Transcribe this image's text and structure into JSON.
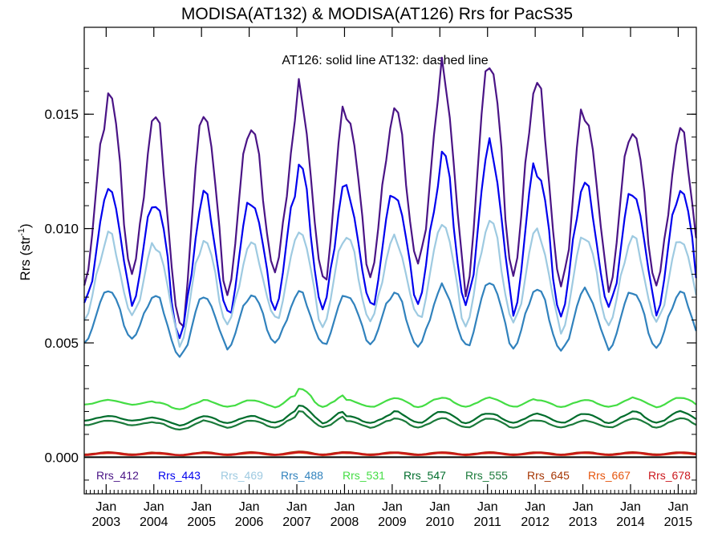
{
  "chart_data": {
    "type": "line",
    "title": "MODISA(AT132) & MODISA(AT126)  Rrs for PacS35",
    "annotation": "AT126: solid line   AT132: dashed line",
    "ylabel_main": "Rrs (str",
    "ylabel_sup": "-1",
    "ylabel_tail": ")",
    "yticks": [
      "0.000",
      "0.005",
      "0.010",
      "0.015"
    ],
    "xticks_month": "Jan",
    "xticks_years": [
      "2003",
      "2004",
      "2005",
      "2006",
      "2007",
      "2008",
      "2009",
      "2010",
      "2011",
      "2012",
      "2013",
      "2014",
      "2015"
    ],
    "ylim": [
      -0.0016,
      0.0188
    ],
    "xlim": [
      2002.54,
      2015.38
    ],
    "zero_line": true,
    "legend_position": "bottom",
    "series": [
      {
        "name": "Rrs_412",
        "color": "#4a1486",
        "baseline": 0.0078,
        "amplitude": 0.0064,
        "peaks": [
          0.0145,
          0.016,
          0.0146,
          0.0152,
          0.0143,
          0.0162,
          0.015,
          0.0152,
          0.017,
          0.0172,
          0.0162,
          0.0151,
          0.0142
        ],
        "troughs": [
          0.0078,
          0.008,
          0.0055,
          0.0073,
          0.008,
          0.0075,
          0.008,
          0.0083,
          0.0075,
          0.008,
          0.0072,
          0.0075,
          0.0075
        ]
      },
      {
        "name": "Rrs_443",
        "color": "#0000ee",
        "baseline": 0.0066,
        "amplitude": 0.0046,
        "peaks": [
          0.011,
          0.012,
          0.011,
          0.0115,
          0.0112,
          0.0128,
          0.0117,
          0.0115,
          0.0133,
          0.0136,
          0.0124,
          0.0119,
          0.0117
        ],
        "troughs": [
          0.0066,
          0.0068,
          0.0052,
          0.0062,
          0.0066,
          0.0064,
          0.0065,
          0.0068,
          0.0065,
          0.0065,
          0.0062,
          0.0064,
          0.0064
        ]
      },
      {
        "name": "Rrs_469",
        "color": "#9ecae1",
        "baseline": 0.006,
        "amplitude": 0.0036,
        "peaks": [
          0.0093,
          0.0098,
          0.0093,
          0.0095,
          0.0093,
          0.01,
          0.0096,
          0.0096,
          0.0103,
          0.0103,
          0.0098,
          0.0096,
          0.0096
        ],
        "troughs": [
          0.006,
          0.0061,
          0.005,
          0.0058,
          0.006,
          0.0058,
          0.0059,
          0.006,
          0.0058,
          0.0058,
          0.0056,
          0.0058,
          0.0058
        ]
      },
      {
        "name": "Rrs_488",
        "color": "#3182bd",
        "baseline": 0.0051,
        "amplitude": 0.0021,
        "peaks": [
          0.0072,
          0.0073,
          0.007,
          0.0071,
          0.0071,
          0.0072,
          0.0071,
          0.0072,
          0.0075,
          0.0077,
          0.0073,
          0.0073,
          0.0072
        ],
        "troughs": [
          0.0051,
          0.0052,
          0.0043,
          0.0048,
          0.005,
          0.0049,
          0.005,
          0.0048,
          0.0048,
          0.0048,
          0.0046,
          0.0048,
          0.0048
        ]
      },
      {
        "name": "Rrs_531",
        "color": "#2ca25f",
        "baseline": 0.0023,
        "amplitude": 0.0002,
        "peaks": [
          0.0025,
          0.0025,
          0.0024,
          0.0025,
          0.0025,
          0.003,
          0.0025,
          0.0026,
          0.0026,
          0.0026,
          0.0025,
          0.0025,
          0.0026
        ],
        "troughs": [
          0.0023,
          0.0023,
          0.0021,
          0.0022,
          0.0022,
          0.0022,
          0.0022,
          0.0022,
          0.0022,
          0.0022,
          0.0022,
          0.0022,
          0.0022
        ],
        "display_color": "#44dd44"
      },
      {
        "name": "Rrs_547",
        "color": "#006d2c",
        "baseline": 0.0016,
        "amplitude": 0.0002,
        "peaks": [
          0.0018,
          0.0018,
          0.0017,
          0.0018,
          0.0018,
          0.0023,
          0.0018,
          0.002,
          0.002,
          0.0019,
          0.0019,
          0.0019,
          0.002
        ],
        "troughs": [
          0.0016,
          0.0016,
          0.0014,
          0.0015,
          0.0015,
          0.0015,
          0.0015,
          0.0015,
          0.0015,
          0.0015,
          0.0015,
          0.0015,
          0.0015
        ]
      },
      {
        "name": "Rrs_555",
        "color": "#00441b",
        "baseline": 0.0014,
        "amplitude": 0.0002,
        "peaks": [
          0.0016,
          0.0016,
          0.0015,
          0.0016,
          0.0016,
          0.002,
          0.0016,
          0.0017,
          0.0017,
          0.0017,
          0.0016,
          0.0016,
          0.0017
        ],
        "troughs": [
          0.0014,
          0.0014,
          0.0012,
          0.0013,
          0.0013,
          0.0013,
          0.0013,
          0.0013,
          0.0013,
          0.0013,
          0.0013,
          0.0013,
          0.0013
        ],
        "display_color": "#1a7a3a"
      },
      {
        "name": "Rrs_645",
        "color": "#a63603",
        "baseline": 0.00016,
        "amplitude": 5e-05,
        "peaks": [
          0.00022,
          0.00022,
          0.0002,
          0.00022,
          0.00022,
          0.00025,
          0.00022,
          0.00022,
          0.00022,
          0.00022,
          0.00022,
          0.00022,
          0.00022
        ],
        "troughs": [
          0.00012,
          0.00012,
          0.0001,
          0.00012,
          0.00012,
          0.00012,
          0.00012,
          0.00012,
          0.00012,
          0.00012,
          0.00012,
          0.00012,
          0.00012
        ]
      },
      {
        "name": "Rrs_667",
        "color": "#e6550d",
        "baseline": 0.00012,
        "amplitude": 4e-05,
        "peaks": [
          0.00018,
          0.00018,
          0.00016,
          0.00018,
          0.00018,
          0.0002,
          0.00018,
          0.00018,
          0.00018,
          0.00018,
          0.00018,
          0.00018,
          0.00018
        ],
        "troughs": [
          9e-05,
          9e-05,
          8e-05,
          9e-05,
          9e-05,
          9e-05,
          9e-05,
          9e-05,
          9e-05,
          9e-05,
          9e-05,
          9e-05,
          9e-05
        ]
      },
      {
        "name": "Rrs_678",
        "color": "#cb181d",
        "baseline": 0.00014,
        "amplitude": 4e-05,
        "peaks": [
          0.0002,
          0.0002,
          0.00018,
          0.0002,
          0.0002,
          0.00022,
          0.0002,
          0.0002,
          0.0002,
          0.0002,
          0.0002,
          0.0002,
          0.0002
        ],
        "troughs": [
          0.0001,
          0.0001,
          9e-05,
          0.0001,
          0.0001,
          0.0001,
          0.0001,
          0.0001,
          0.0001,
          0.0001,
          0.0001,
          0.0001,
          0.0001
        ]
      }
    ]
  }
}
